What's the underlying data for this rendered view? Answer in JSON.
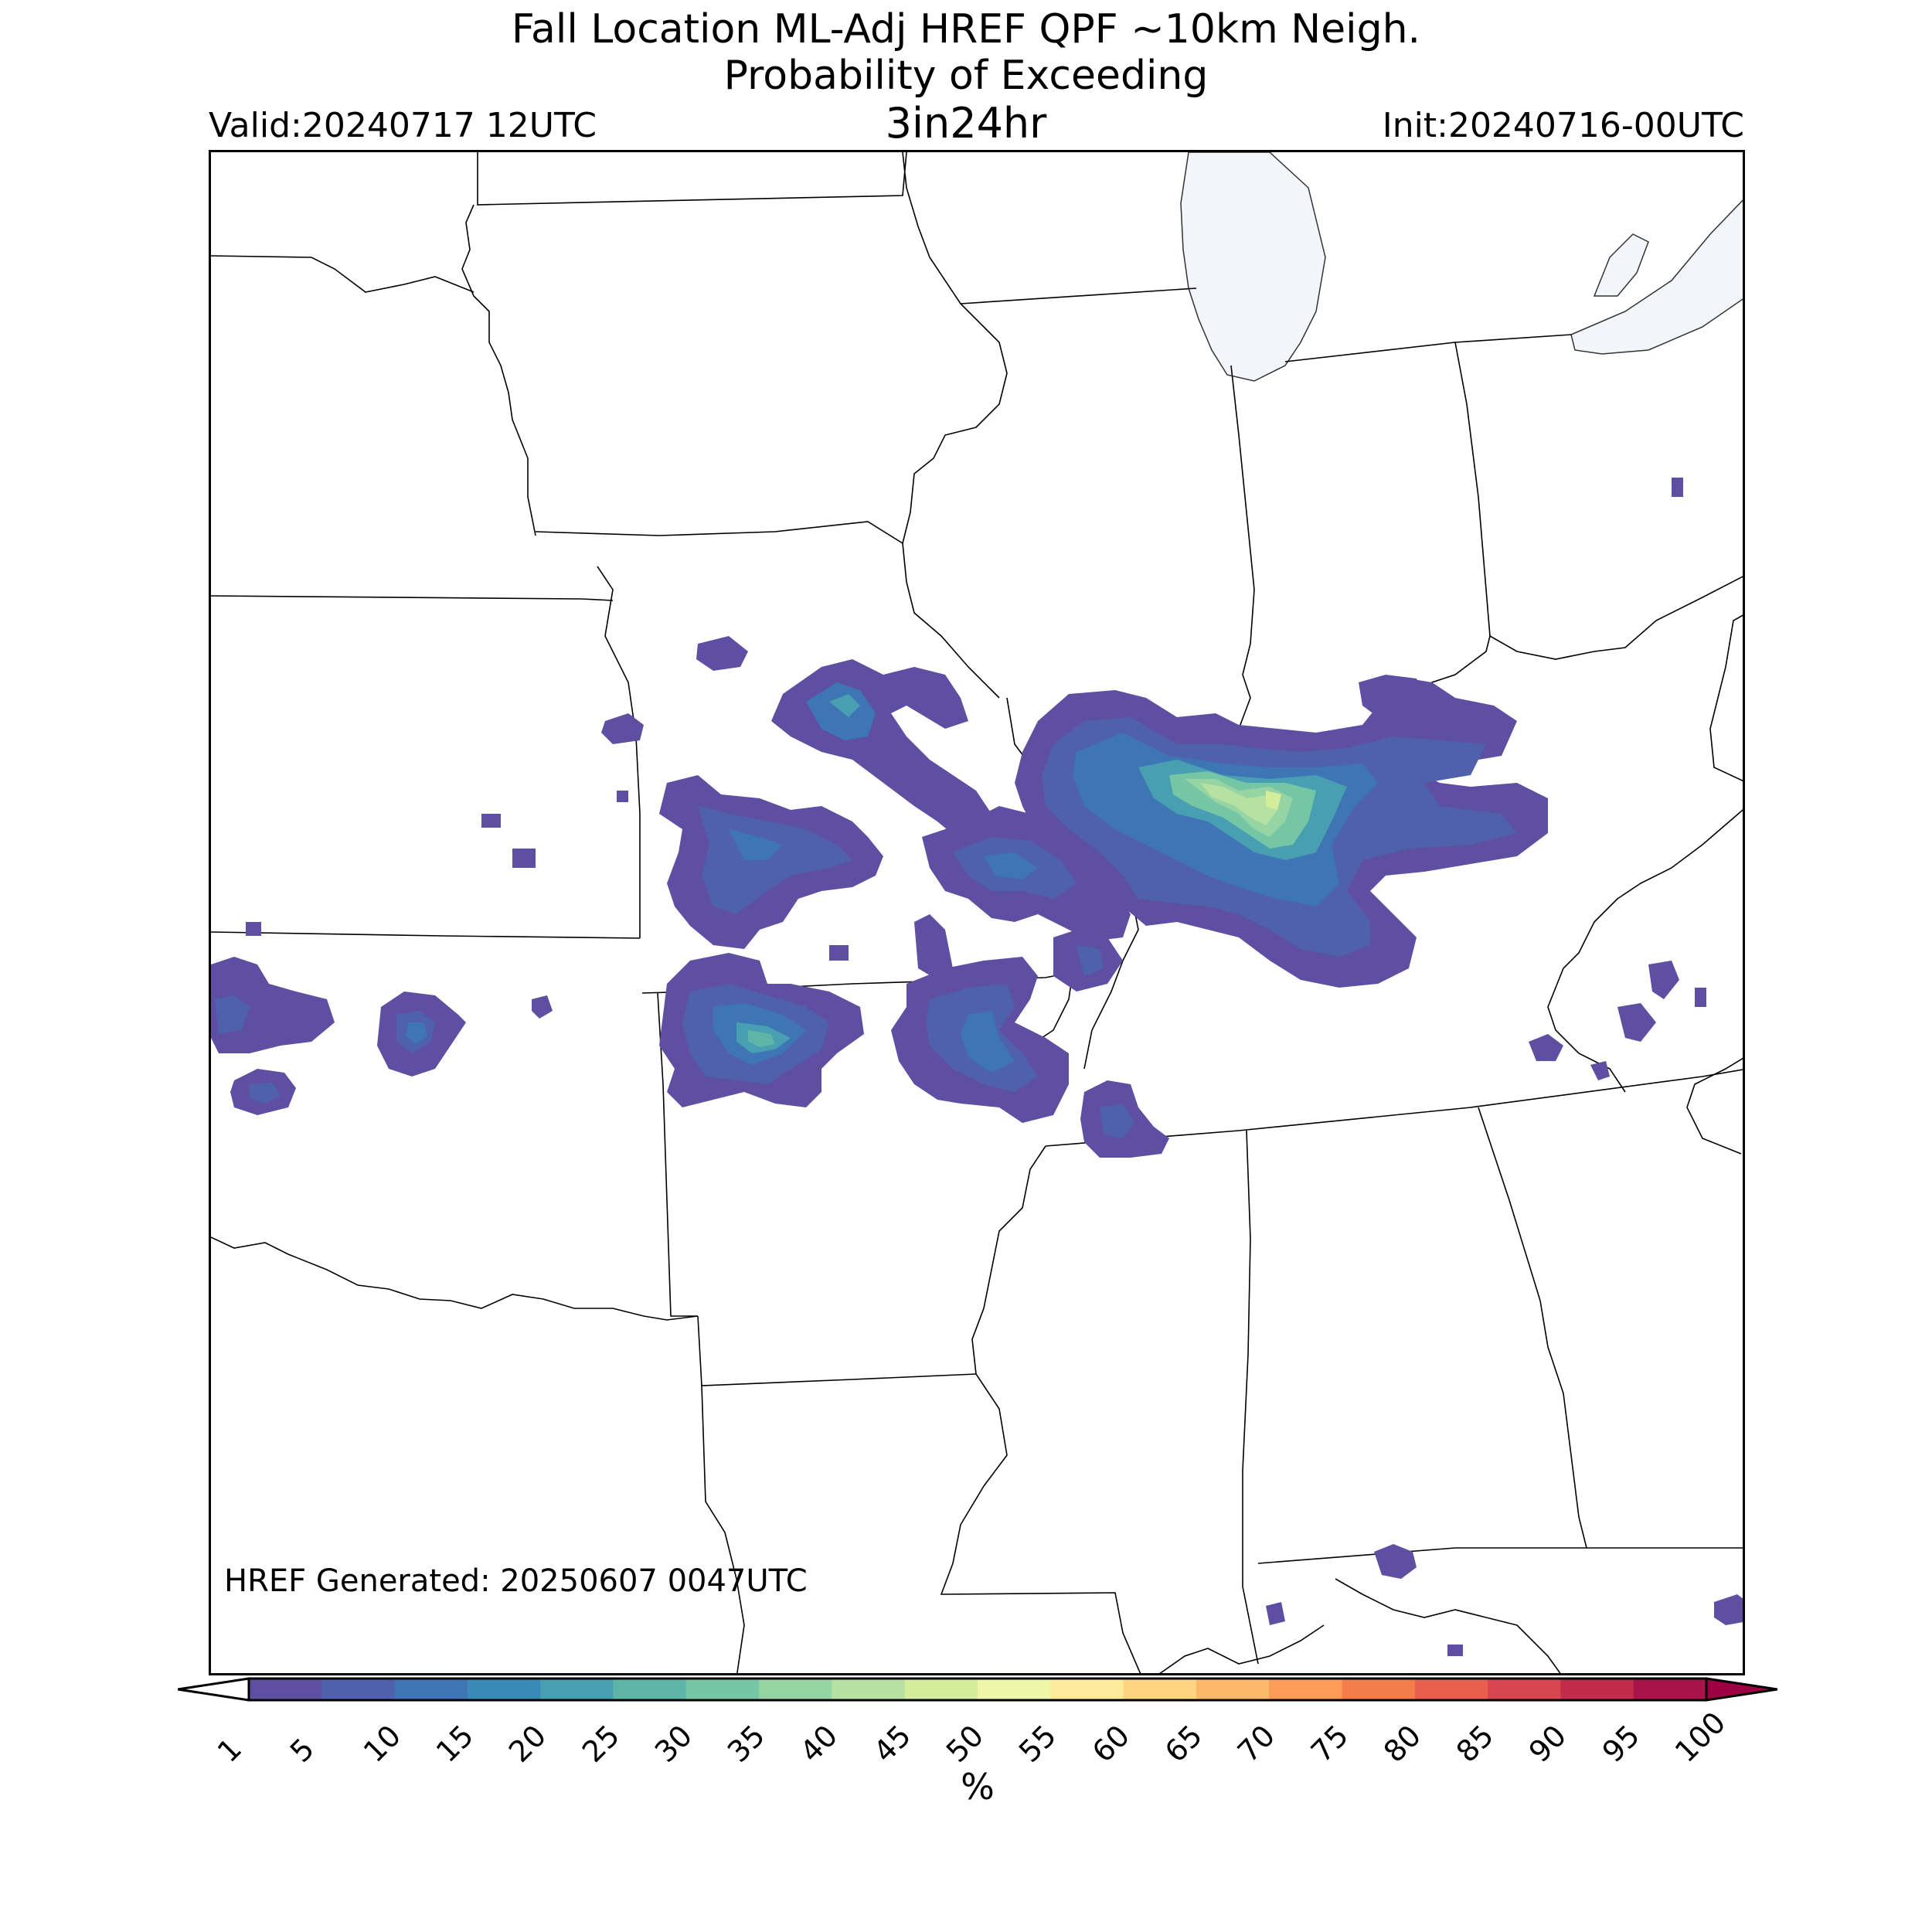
{
  "title": {
    "line1": "Fall Location ML-Adj HREF QPF ~10km Neigh.",
    "line2": "Probability of Exceeding",
    "threshold": "3in24hr",
    "valid": "Valid:20240717 12UTC",
    "init": "Init:20240716-00UTC"
  },
  "generated": "HREF Generated: 20250607 0047UTC",
  "colorbar": {
    "units": "%",
    "ticks": [
      "1",
      "5",
      "10",
      "15",
      "20",
      "25",
      "30",
      "35",
      "40",
      "45",
      "50",
      "55",
      "60",
      "65",
      "70",
      "75",
      "80",
      "85",
      "90",
      "95",
      "100"
    ],
    "colors": [
      "#5e4fa2",
      "#4f61aa",
      "#3e75b4",
      "#3a8ab8",
      "#489fb1",
      "#5fb4a8",
      "#74c6a5",
      "#96d4a4",
      "#b6e1a1",
      "#d4ed9b",
      "#eef7a8",
      "#fdeb9b",
      "#fed481",
      "#fdb96a",
      "#fb9c58",
      "#f57d4a",
      "#e8604c",
      "#d7454f",
      "#c22b4a",
      "#a8134a"
    ],
    "under_color": "#ffffff",
    "over_color": "#9e0142"
  },
  "map": {
    "lake_color": "#f2f6fb",
    "border_color": "#000000",
    "colorscale_note": "Spectral_r"
  }
}
